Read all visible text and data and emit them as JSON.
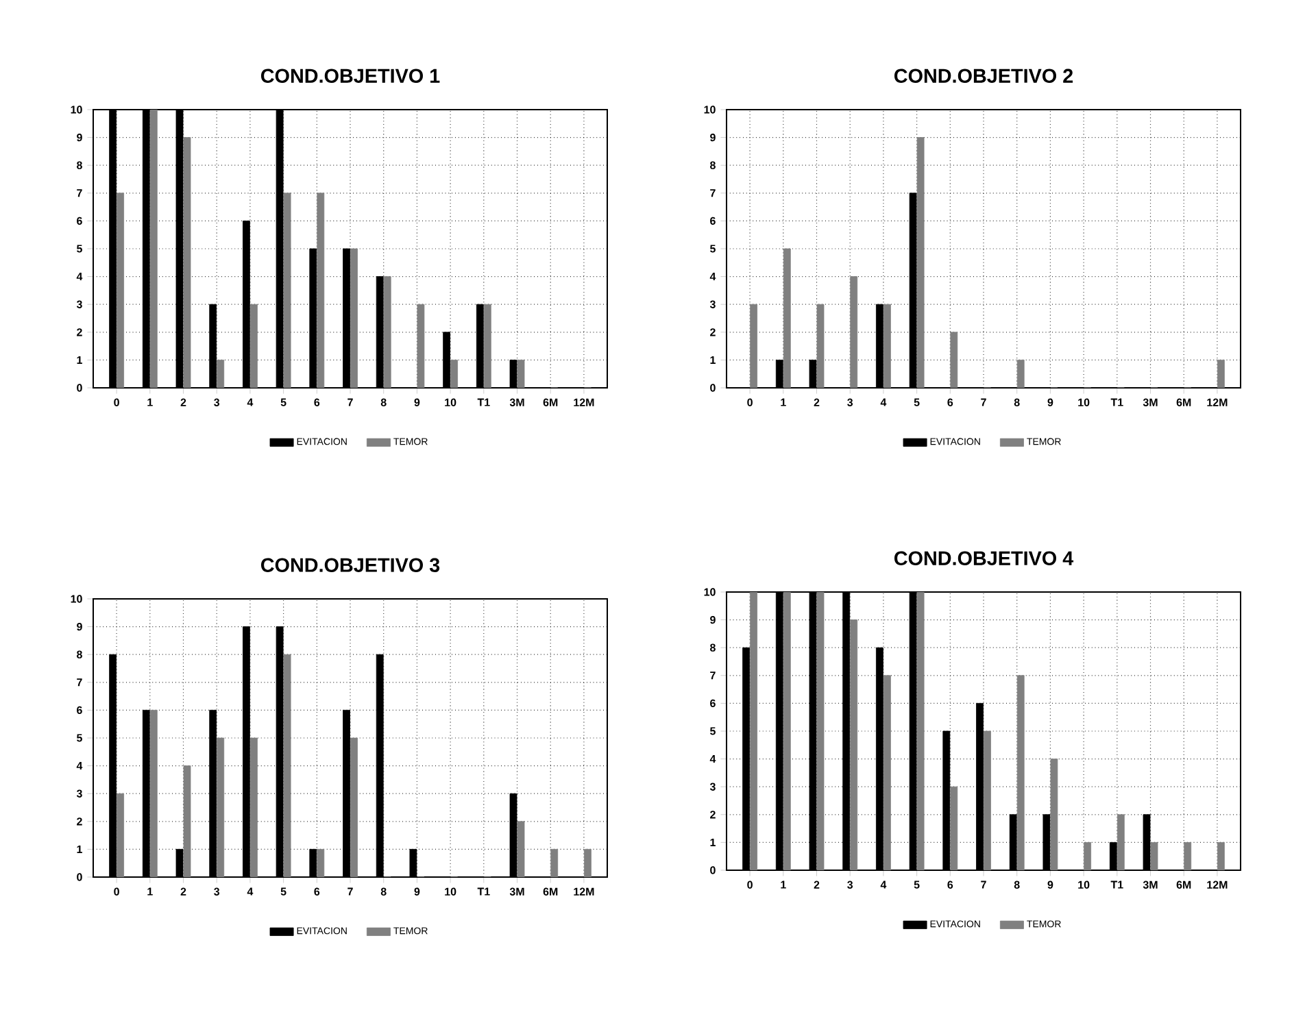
{
  "chart_data": [
    {
      "type": "bar",
      "title": "COND.OBJETIVO 1",
      "categories": [
        "0",
        "1",
        "2",
        "3",
        "4",
        "5",
        "6",
        "7",
        "8",
        "9",
        "10",
        "T1",
        "3M",
        "6M",
        "12M"
      ],
      "ylim": [
        0,
        10
      ],
      "yticks": [
        0,
        1,
        2,
        3,
        4,
        5,
        6,
        7,
        8,
        9,
        10
      ],
      "grid": true,
      "legend": "bottom",
      "series": [
        {
          "name": "EVITACION",
          "color": "#000000",
          "values": [
            10,
            10,
            10,
            3,
            6,
            10,
            5,
            5,
            4,
            0,
            2,
            3,
            1,
            0,
            0
          ]
        },
        {
          "name": "TEMOR",
          "color": "#808080",
          "values": [
            7,
            10,
            9,
            1,
            3,
            7,
            7,
            5,
            4,
            3,
            1,
            3,
            1,
            0,
            0
          ]
        }
      ]
    },
    {
      "type": "bar",
      "title": "COND.OBJETIVO 2",
      "categories": [
        "0",
        "1",
        "2",
        "3",
        "4",
        "5",
        "6",
        "7",
        "8",
        "9",
        "10",
        "T1",
        "3M",
        "6M",
        "12M"
      ],
      "ylim": [
        0,
        10
      ],
      "yticks": [
        0,
        1,
        2,
        3,
        4,
        5,
        6,
        7,
        8,
        9,
        10
      ],
      "grid": true,
      "legend": "bottom",
      "series": [
        {
          "name": "EVITACION",
          "color": "#000000",
          "values": [
            0,
            1,
            1,
            0,
            3,
            7,
            0,
            0,
            0,
            0,
            0,
            0,
            0,
            0,
            0
          ]
        },
        {
          "name": "TEMOR",
          "color": "#808080",
          "values": [
            3,
            5,
            3,
            4,
            3,
            9,
            2,
            0,
            1,
            0,
            0,
            0,
            0,
            0,
            1
          ]
        }
      ]
    },
    {
      "type": "bar",
      "title": "COND.OBJETIVO 3",
      "categories": [
        "0",
        "1",
        "2",
        "3",
        "4",
        "5",
        "6",
        "7",
        "8",
        "9",
        "10",
        "T1",
        "3M",
        "6M",
        "12M"
      ],
      "ylim": [
        0,
        10
      ],
      "yticks": [
        0,
        1,
        2,
        3,
        4,
        5,
        6,
        7,
        8,
        9,
        10
      ],
      "grid": true,
      "legend": "bottom",
      "series": [
        {
          "name": "EVITACION",
          "color": "#000000",
          "values": [
            8,
            6,
            1,
            6,
            9,
            9,
            1,
            6,
            8,
            1,
            0,
            0,
            3,
            0,
            0
          ]
        },
        {
          "name": "TEMOR",
          "color": "#808080",
          "values": [
            3,
            6,
            4,
            5,
            5,
            8,
            1,
            5,
            0,
            0,
            0,
            0,
            2,
            1,
            1
          ]
        }
      ]
    },
    {
      "type": "bar",
      "title": "COND.OBJETIVO 4",
      "categories": [
        "0",
        "1",
        "2",
        "3",
        "4",
        "5",
        "6",
        "7",
        "8",
        "9",
        "10",
        "T1",
        "3M",
        "6M",
        "12M"
      ],
      "ylim": [
        0,
        10
      ],
      "yticks": [
        0,
        1,
        2,
        3,
        4,
        5,
        6,
        7,
        8,
        9,
        10
      ],
      "grid": true,
      "legend": "bottom",
      "series": [
        {
          "name": "EVITACION",
          "color": "#000000",
          "values": [
            8,
            10,
            10,
            10,
            8,
            10,
            5,
            6,
            2,
            2,
            0,
            1,
            2,
            0,
            0
          ]
        },
        {
          "name": "TEMOR",
          "color": "#808080",
          "values": [
            10,
            10,
            10,
            9,
            7,
            10,
            3,
            5,
            7,
            4,
            1,
            2,
            1,
            1,
            1
          ]
        }
      ]
    }
  ]
}
